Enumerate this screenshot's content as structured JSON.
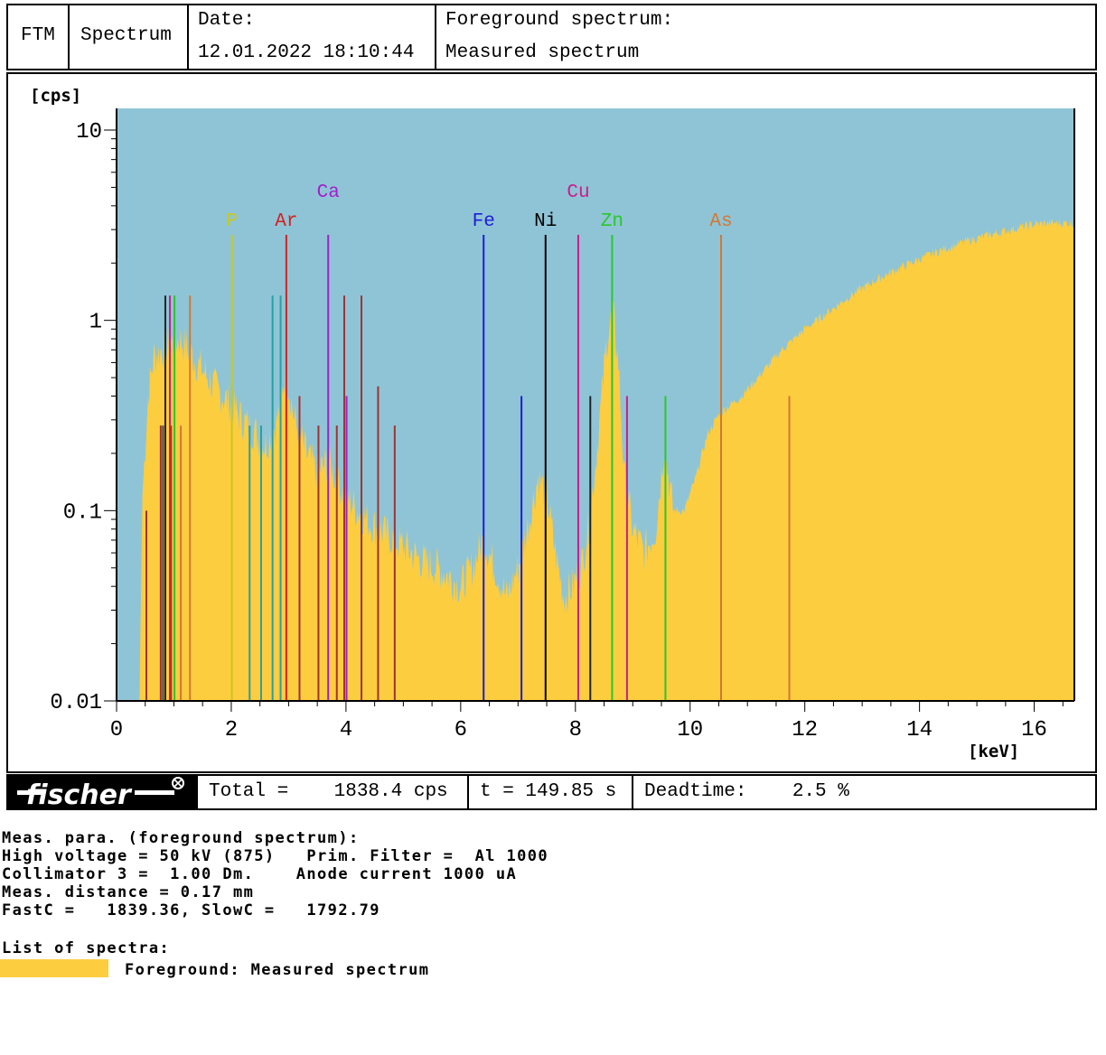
{
  "header": {
    "brand": "FTM",
    "mode": "Spectrum",
    "date_label": "Date:",
    "date_value": "12.01.2022 18:10:44",
    "fg_label": "Foreground spectrum:",
    "fg_value": "Measured spectrum"
  },
  "footer": {
    "logo_text": "fischer",
    "total": "Total =    1838.4 cps",
    "time": "t = 149.85 s",
    "deadtime": "Deadtime:    2.5 %"
  },
  "params": {
    "title": "Meas. para. (foreground spectrum):",
    "line1": "High voltage = 50 kV (875)   Prim. Filter =  Al 1000",
    "line2": "Collimator 3 =  1.00 Dm.    Anode current 1000 uA",
    "line3": "Meas. distance = 0.17 mm",
    "line4": "FastC =   1839.36, SlowC =   1792.79"
  },
  "legend": {
    "title": "List of spectra:",
    "entry": "Foreground: Measured spectrum",
    "swatch_color": "#fdcd40"
  },
  "colors": {
    "plot_bg": "#8fc4d6",
    "spectrum_fill": "#fdcd40"
  },
  "chart_data": {
    "type": "area",
    "title": "",
    "ylabel": "[cps]",
    "xlabel": "[keV]",
    "yscale": "log",
    "xlim": [
      0,
      16.7
    ],
    "ylim": [
      0.01,
      13
    ],
    "xticks": [
      0,
      2,
      4,
      6,
      8,
      10,
      12,
      14,
      16
    ],
    "yticks": [
      10,
      1,
      0.1,
      0.01
    ],
    "ytick_labels": [
      "10",
      "1",
      "0.1",
      "0.01"
    ],
    "series": [
      {
        "name": "Foreground: Measured spectrum",
        "color": "#fdcd40",
        "x": [
          0,
          0.4,
          0.45,
          0.55,
          0.65,
          0.8,
          0.95,
          1.1,
          1.25,
          1.4,
          1.55,
          1.7,
          1.85,
          2.0,
          2.2,
          2.4,
          2.6,
          2.8,
          2.95,
          3.1,
          3.3,
          3.5,
          3.7,
          3.85,
          4.0,
          4.2,
          4.45,
          4.7,
          5.0,
          5.3,
          5.6,
          5.8,
          6.0,
          6.2,
          6.4,
          6.6,
          6.8,
          7.0,
          7.2,
          7.35,
          7.5,
          7.65,
          7.8,
          7.95,
          8.1,
          8.25,
          8.4,
          8.55,
          8.65,
          8.75,
          8.85,
          9.0,
          9.2,
          9.4,
          9.55,
          9.7,
          9.9,
          10.1,
          10.3,
          10.5,
          10.7,
          10.9,
          11.1,
          11.3,
          11.6,
          12.0,
          12.4,
          12.8,
          13.2,
          13.6,
          14.0,
          14.4,
          14.8,
          15.2,
          15.6,
          16.0,
          16.3,
          16.7
        ],
        "y": [
          0.01,
          0.01,
          0.12,
          0.4,
          0.65,
          0.7,
          0.75,
          0.8,
          0.7,
          0.6,
          0.52,
          0.45,
          0.4,
          0.36,
          0.3,
          0.26,
          0.22,
          0.3,
          0.55,
          0.3,
          0.2,
          0.16,
          0.18,
          0.14,
          0.12,
          0.1,
          0.085,
          0.075,
          0.065,
          0.055,
          0.05,
          0.045,
          0.04,
          0.05,
          0.07,
          0.05,
          0.035,
          0.05,
          0.09,
          0.15,
          0.12,
          0.06,
          0.035,
          0.04,
          0.05,
          0.09,
          0.25,
          0.8,
          1.1,
          0.6,
          0.15,
          0.08,
          0.06,
          0.08,
          0.22,
          0.1,
          0.1,
          0.15,
          0.25,
          0.32,
          0.36,
          0.4,
          0.47,
          0.55,
          0.7,
          0.9,
          1.1,
          1.35,
          1.6,
          1.85,
          2.1,
          2.35,
          2.6,
          2.8,
          3.0,
          3.2,
          3.25,
          3.25
        ]
      }
    ],
    "element_markers": [
      {
        "label": "P",
        "energy": 2.01,
        "color": "#c8c81e",
        "tier": 1
      },
      {
        "label": "Ar",
        "energy": 2.96,
        "color": "#d42020",
        "tier": 1
      },
      {
        "label": "Ca",
        "energy": 3.69,
        "color": "#a020c8",
        "tier": 2
      },
      {
        "label": "Fe",
        "energy": 6.4,
        "color": "#1c1cd8",
        "tier": 1
      },
      {
        "label": "Ni",
        "energy": 7.48,
        "color": "#000000",
        "tier": 1
      },
      {
        "label": "Cu",
        "energy": 8.05,
        "color": "#c81e8c",
        "tier": 2
      },
      {
        "label": "Zn",
        "energy": 8.64,
        "color": "#28c828",
        "tier": 1
      },
      {
        "label": "As",
        "energy": 10.54,
        "color": "#d27832",
        "tier": 1
      }
    ],
    "line_markers": [
      {
        "energy": 0.52,
        "height": 0.1,
        "color": "#a03232"
      },
      {
        "energy": 0.77,
        "height": 0.28,
        "color": "#a03232"
      },
      {
        "energy": 0.85,
        "height": 1.35,
        "color": "#222222"
      },
      {
        "energy": 0.93,
        "height": 1.35,
        "color": "#c81e8c"
      },
      {
        "energy": 1.01,
        "height": 1.35,
        "color": "#28c828"
      },
      {
        "energy": 0.81,
        "height": 0.28,
        "color": "#444444"
      },
      {
        "energy": 0.95,
        "height": 0.28,
        "color": "#c82828"
      },
      {
        "energy": 1.12,
        "height": 0.28,
        "color": "#d27832"
      },
      {
        "energy": 1.28,
        "height": 1.35,
        "color": "#d27832"
      },
      {
        "energy": 2.32,
        "height": 0.28,
        "color": "#28a0a0"
      },
      {
        "energy": 2.52,
        "height": 0.28,
        "color": "#28a0a0"
      },
      {
        "energy": 2.72,
        "height": 1.35,
        "color": "#28a0a0"
      },
      {
        "energy": 2.86,
        "height": 1.35,
        "color": "#28a0a0"
      },
      {
        "energy": 3.19,
        "height": 0.4,
        "color": "#a03232"
      },
      {
        "energy": 3.52,
        "height": 0.28,
        "color": "#a03232"
      },
      {
        "energy": 3.84,
        "height": 0.28,
        "color": "#a03232"
      },
      {
        "energy": 3.97,
        "height": 1.35,
        "color": "#a03232"
      },
      {
        "energy": 4.01,
        "height": 0.4,
        "color": "#a020c8"
      },
      {
        "energy": 4.27,
        "height": 1.35,
        "color": "#a03232"
      },
      {
        "energy": 4.56,
        "height": 0.45,
        "color": "#a03232"
      },
      {
        "energy": 4.85,
        "height": 0.28,
        "color": "#a03232"
      },
      {
        "energy": 7.06,
        "height": 0.4,
        "color": "#1c1cd8"
      },
      {
        "energy": 8.26,
        "height": 0.4,
        "color": "#222222"
      },
      {
        "energy": 8.9,
        "height": 0.4,
        "color": "#c81e8c"
      },
      {
        "energy": 9.57,
        "height": 0.4,
        "color": "#28c828"
      },
      {
        "energy": 11.73,
        "height": 0.4,
        "color": "#d27832"
      }
    ]
  }
}
